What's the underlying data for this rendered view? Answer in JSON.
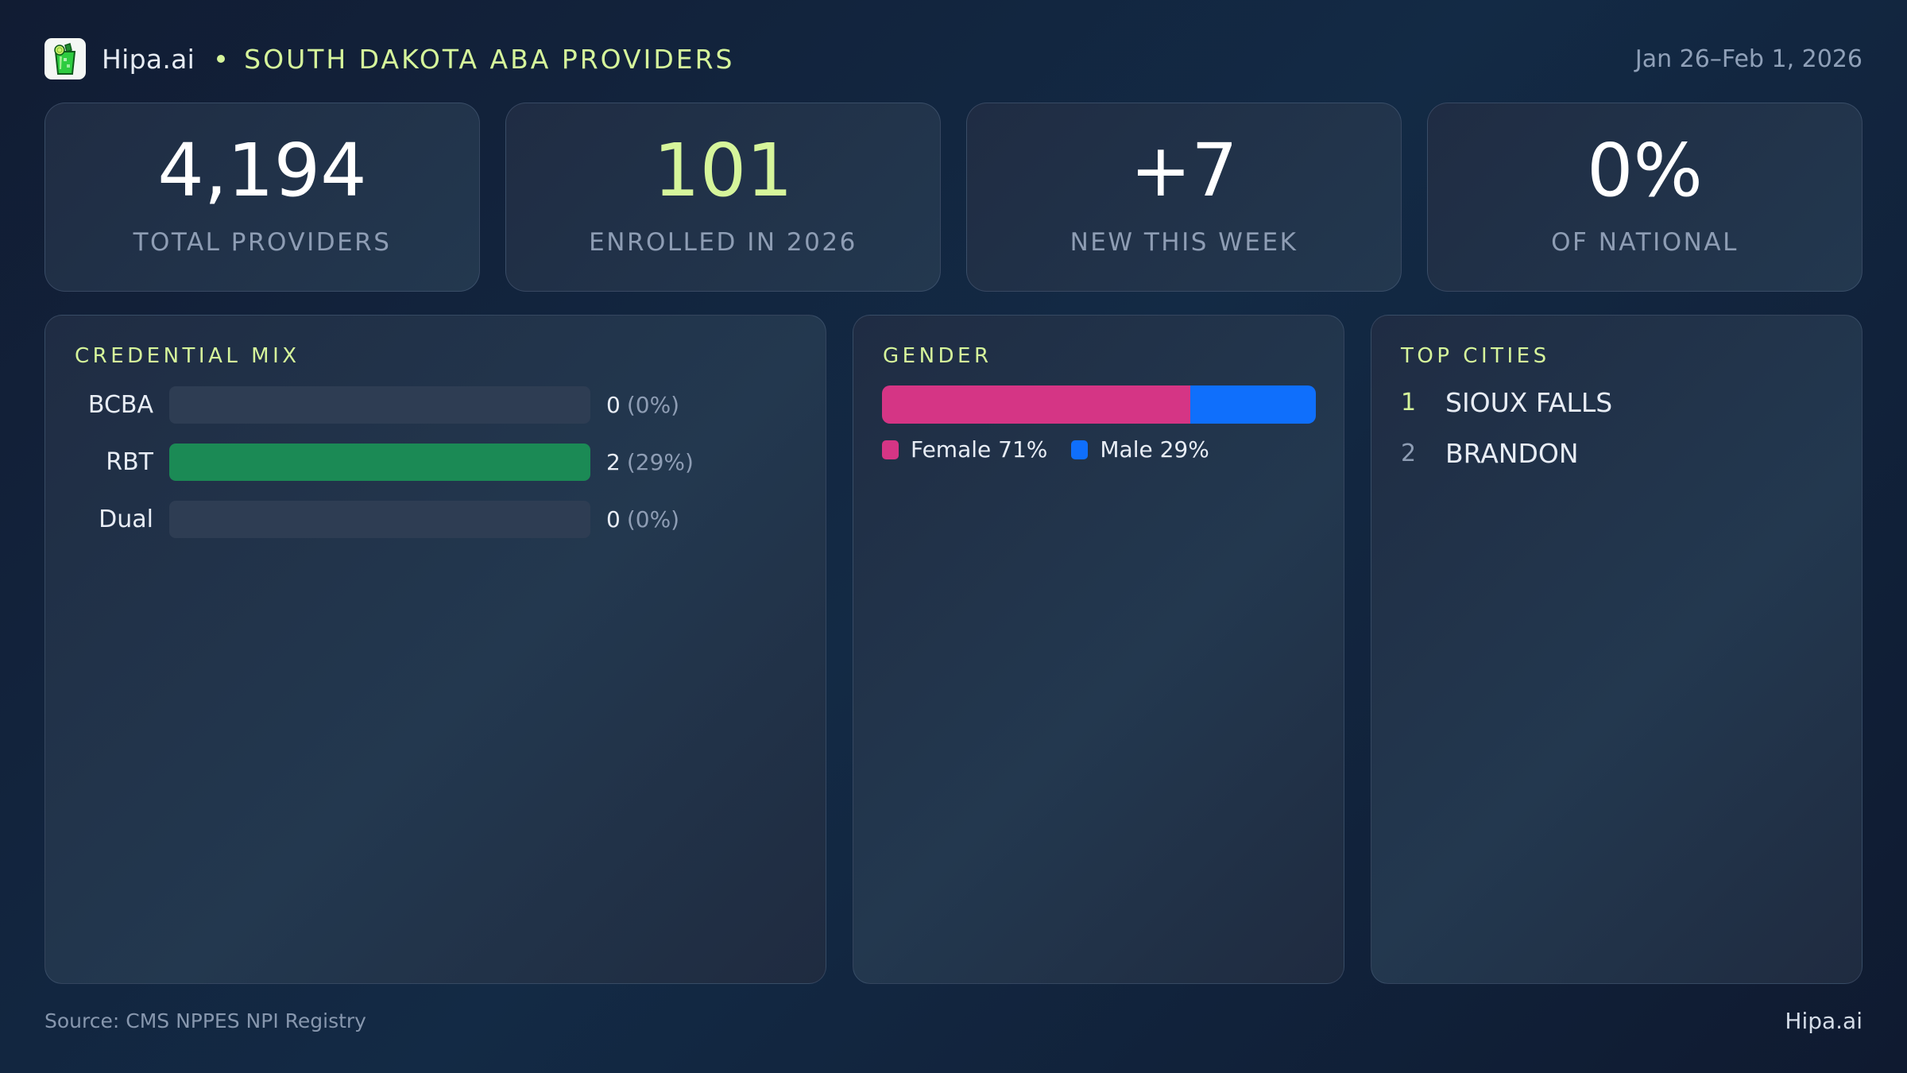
{
  "header": {
    "brand": "Hipa.ai",
    "title": "SOUTH DAKOTA ABA PROVIDERS",
    "date_range": "Jan 26–Feb 1, 2026",
    "logo_icon": "mojito-glass-icon"
  },
  "kpis": [
    {
      "value": "4,194",
      "label": "TOTAL PROVIDERS",
      "accent": false
    },
    {
      "value": "101",
      "label": "ENROLLED IN 2026",
      "accent": true
    },
    {
      "value": "+7",
      "label": "NEW THIS WEEK",
      "accent": false
    },
    {
      "value": "0%",
      "label": "OF NATIONAL",
      "accent": false
    }
  ],
  "credential_mix": {
    "title": "CREDENTIAL MIX",
    "rows": [
      {
        "label": "BCBA",
        "count": "0",
        "pct": "(0%)",
        "fill": 0
      },
      {
        "label": "RBT",
        "count": "2",
        "pct": "(29%)",
        "fill": 100
      },
      {
        "label": "Dual",
        "count": "0",
        "pct": "(0%)",
        "fill": 0
      }
    ],
    "bar_color": "#1b8a55"
  },
  "gender": {
    "title": "GENDER",
    "segments": [
      {
        "label": "Female 71%",
        "share": 71,
        "color": "#d53585"
      },
      {
        "label": "Male 29%",
        "share": 29,
        "color": "#0f6ffc"
      }
    ]
  },
  "top_cities": {
    "title": "TOP CITIES",
    "items": [
      {
        "rank": "1",
        "name": "SIOUX FALLS"
      },
      {
        "rank": "2",
        "name": "BRANDON"
      }
    ]
  },
  "footer": {
    "source": "Source: CMS NPPES NPI Registry",
    "brand": "Hipa.ai"
  },
  "colors": {
    "accent": "#d6f59b",
    "background": "#12233d",
    "card": "#22344c",
    "muted_text": "#8e9db4"
  }
}
